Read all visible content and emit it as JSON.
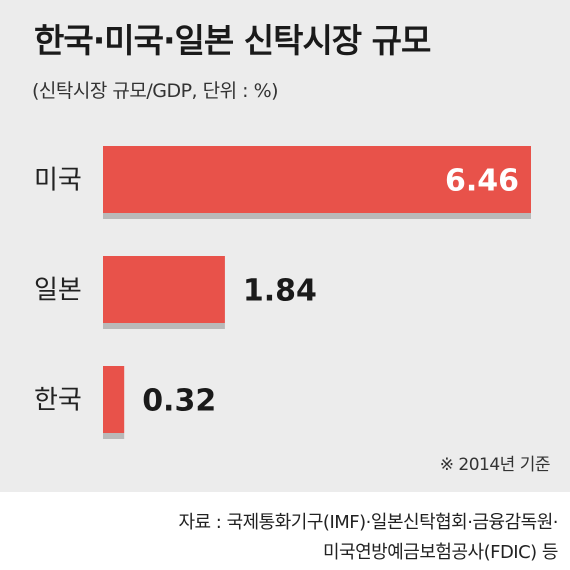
{
  "header": {
    "title": "한국·미국·일본 신탁시장 규모",
    "subtitle": "(신탁시장 규모/GDP, 단위 : %)"
  },
  "chart_data": {
    "type": "bar",
    "orientation": "horizontal",
    "title": "한국·미국·일본 신탁시장 규모",
    "subtitle": "(신탁시장 규모/GDP, 단위 : %)",
    "categories": [
      "미국",
      "일본",
      "한국"
    ],
    "values": [
      6.46,
      1.84,
      0.32
    ],
    "value_labels": [
      "6.46",
      "1.84",
      "0.32"
    ],
    "xlabel": "",
    "ylabel": "",
    "grid": false,
    "colors": {
      "bar": "#e8524a",
      "bar_shadow": "#b9b9b9",
      "label_inside": "#ffffff",
      "label_outside": "#1a1a1a",
      "category": "#222222"
    }
  },
  "notes": {
    "base_year": "※ 2014년 기준"
  },
  "source": {
    "line1": "자료 : 국제통화기구(IMF)·일본신탁협회·금융감독원·",
    "line2": "미국연방예금보험공사(FDIC) 등"
  },
  "colors": {
    "panel_bg": "#ececec",
    "page_bg": "#ffffff"
  }
}
